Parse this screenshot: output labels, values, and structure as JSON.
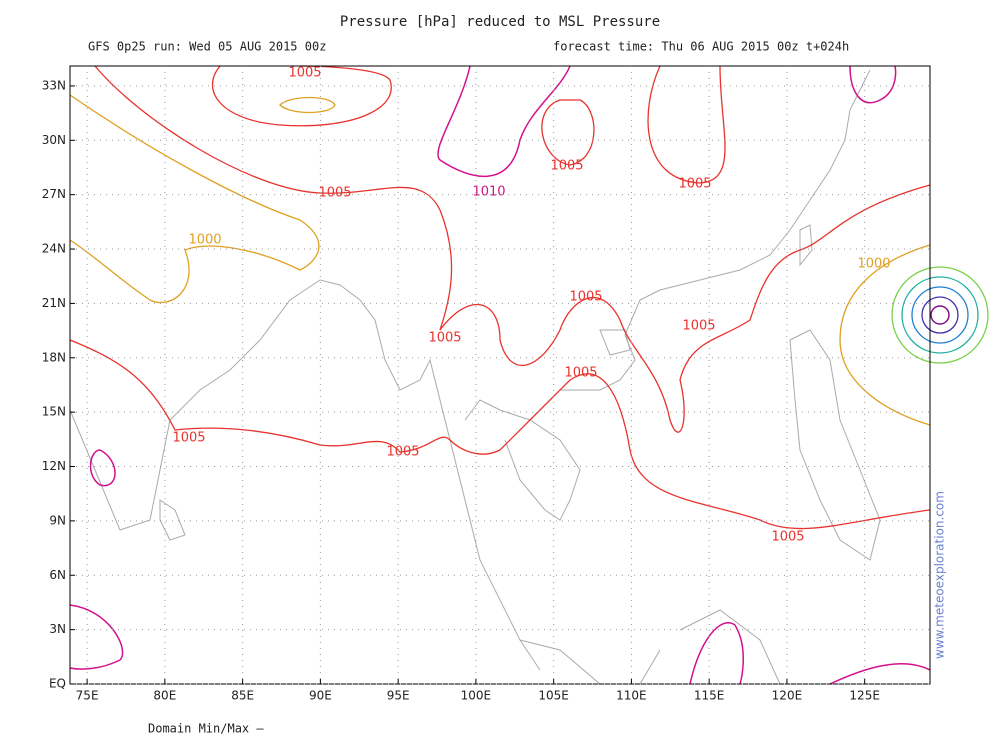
{
  "header": {
    "title": "Pressure [hPa] reduced to MSL Pressure",
    "run": "GFS 0p25 run: Wed 05 AUG 2015 00z",
    "forecast": "forecast time: Thu 06 AUG 2015 00z  t+024h"
  },
  "map": {
    "xlim": [
      73.9,
      129.2
    ],
    "ylim": [
      0,
      34.1
    ],
    "xticks": [
      {
        "value": 75,
        "label": "75E"
      },
      {
        "value": 80,
        "label": "80E"
      },
      {
        "value": 85,
        "label": "85E"
      },
      {
        "value": 90,
        "label": "90E"
      },
      {
        "value": 95,
        "label": "95E"
      },
      {
        "value": 100,
        "label": "100E"
      },
      {
        "value": 105,
        "label": "105E"
      },
      {
        "value": 110,
        "label": "110E"
      },
      {
        "value": 115,
        "label": "115E"
      },
      {
        "value": 120,
        "label": "120E"
      },
      {
        "value": 125,
        "label": "125E"
      }
    ],
    "yticks": [
      {
        "value": 0,
        "label": "EQ"
      },
      {
        "value": 3,
        "label": "3N"
      },
      {
        "value": 6,
        "label": "6N"
      },
      {
        "value": 9,
        "label": "9N"
      },
      {
        "value": 12,
        "label": "12N"
      },
      {
        "value": 15,
        "label": "15N"
      },
      {
        "value": 18,
        "label": "18N"
      },
      {
        "value": 21,
        "label": "21N"
      },
      {
        "value": 24,
        "label": "24N"
      },
      {
        "value": 27,
        "label": "27N"
      },
      {
        "value": 30,
        "label": "30N"
      },
      {
        "value": 33,
        "label": "33N"
      }
    ],
    "contour_labels": [
      1005,
      1005,
      1010,
      1005,
      1005,
      1000,
      1000,
      1005,
      1005,
      1005,
      1005,
      1005,
      1005,
      1005
    ]
  },
  "watermark": "www.meteoexploration.com",
  "footer": "Domain Min/Max  –"
}
